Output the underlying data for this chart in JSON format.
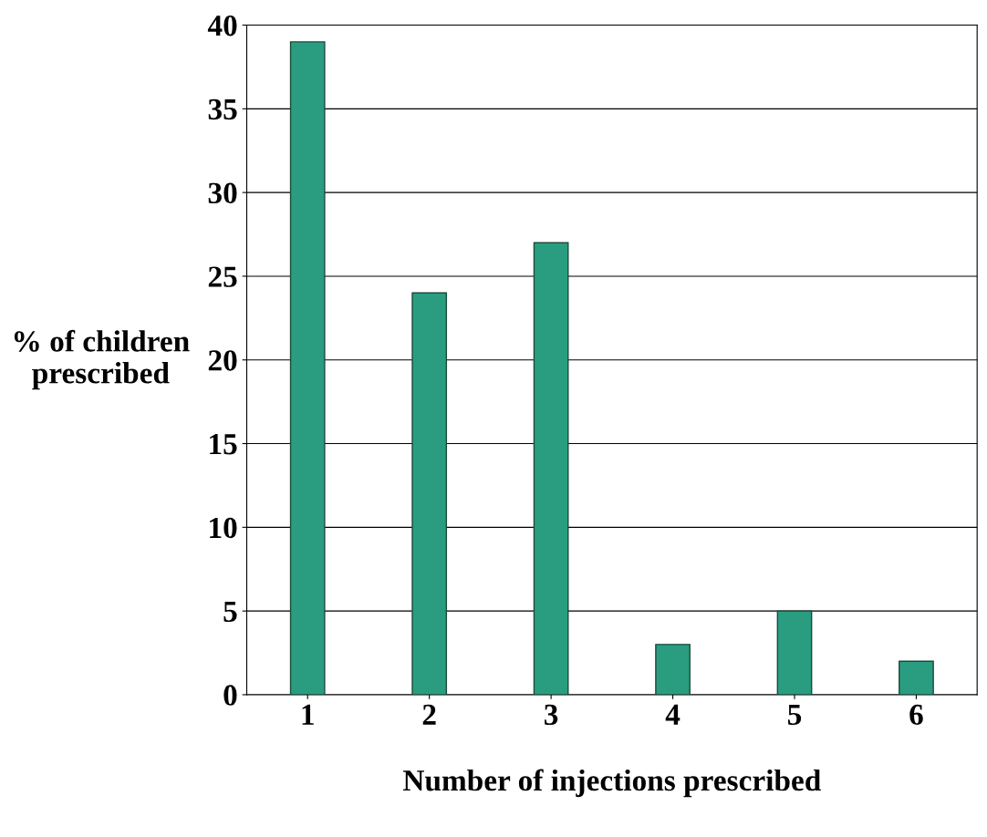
{
  "chart_data": {
    "type": "bar",
    "categories": [
      "1",
      "2",
      "3",
      "4",
      "5",
      "6"
    ],
    "values": [
      39,
      24,
      27,
      3,
      5,
      2
    ],
    "color": "#2a9d80",
    "xlabel": "Number of injections prescribed",
    "ylabel": "% of children\nprescribed",
    "ylim": [
      0,
      40
    ],
    "yticks": [
      0,
      5,
      10,
      15,
      20,
      25,
      30,
      35,
      40
    ],
    "grid": "y",
    "legend": false
  }
}
